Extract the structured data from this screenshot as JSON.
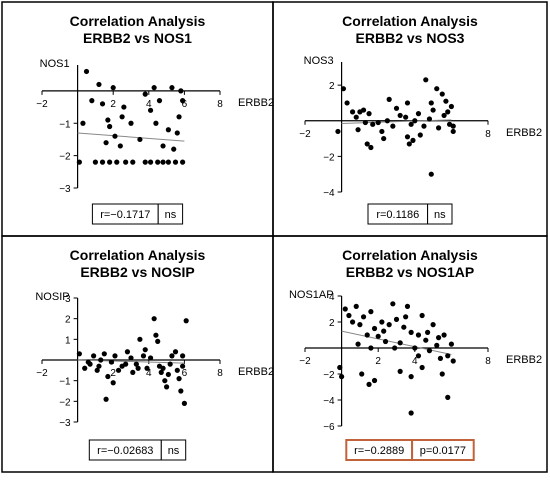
{
  "chart_data": [
    {
      "type": "scatter",
      "title": "Correlation Analysis",
      "subtitle": "ERBB2 vs NOS1",
      "xlabel": "ERBB2",
      "ylabel": "NOS1",
      "xlim": [
        -2,
        8
      ],
      "ylim": [
        -3,
        0.8
      ],
      "xticks": [
        -2,
        2,
        4,
        6,
        8
      ],
      "yticks": [
        -1,
        -2,
        -3
      ],
      "trendline": [
        [
          0,
          -1.3
        ],
        [
          6,
          -1.55
        ]
      ],
      "points": [
        [
          0.5,
          0.6
        ],
        [
          1.2,
          0.2
        ],
        [
          2.0,
          0.1
        ],
        [
          3.8,
          -0.1
        ],
        [
          4.3,
          0.1
        ],
        [
          5.3,
          0.1
        ],
        [
          5.8,
          0.0
        ],
        [
          0.8,
          -0.3
        ],
        [
          1.4,
          -0.4
        ],
        [
          2.6,
          -0.5
        ],
        [
          4.6,
          -0.3
        ],
        [
          5.9,
          -0.3
        ],
        [
          4.1,
          -0.6
        ],
        [
          5.7,
          -0.8
        ],
        [
          1.7,
          -0.9
        ],
        [
          2.5,
          -0.8
        ],
        [
          0.3,
          -1.0
        ],
        [
          1.8,
          -1.1
        ],
        [
          3.0,
          -1.0
        ],
        [
          4.4,
          -1.0
        ],
        [
          5.1,
          -1.2
        ],
        [
          2.1,
          -1.4
        ],
        [
          3.5,
          -1.5
        ],
        [
          5.6,
          -1.3
        ],
        [
          1.6,
          -1.6
        ],
        [
          2.4,
          -1.7
        ],
        [
          4.8,
          -1.7
        ],
        [
          5.4,
          -1.8
        ],
        [
          0.1,
          -2.2
        ],
        [
          1.0,
          -2.2
        ],
        [
          1.4,
          -2.2
        ],
        [
          1.8,
          -2.2
        ],
        [
          2.2,
          -2.2
        ],
        [
          2.7,
          -2.2
        ],
        [
          3.1,
          -2.2
        ],
        [
          3.8,
          -2.2
        ],
        [
          4.1,
          -2.2
        ],
        [
          4.5,
          -2.2
        ],
        [
          4.8,
          -2.2
        ],
        [
          5.1,
          -2.2
        ],
        [
          5.5,
          -2.2
        ],
        [
          5.9,
          -2.2
        ]
      ],
      "r": "r=−0.1717",
      "p": "ns",
      "highlight": false
    },
    {
      "type": "scatter",
      "title": "Correlation Analysis",
      "subtitle": "ERBB2 vs NOS3",
      "xlabel": "ERBB2",
      "ylabel": "NOS3",
      "xlim": [
        -2,
        8
      ],
      "ylim": [
        -4,
        3.3
      ],
      "xticks": [
        -2,
        8
      ],
      "yticks": [
        2,
        -2,
        -4
      ],
      "trendline": [
        [
          0,
          -0.15
        ],
        [
          6,
          0.05
        ]
      ],
      "points": [
        [
          0.1,
          1.8
        ],
        [
          0.3,
          1.0
        ],
        [
          0.6,
          0.5
        ],
        [
          -0.2,
          -0.6
        ],
        [
          0.8,
          0.2
        ],
        [
          1.0,
          0.5
        ],
        [
          1.3,
          -0.1
        ],
        [
          1.5,
          0.4
        ],
        [
          1.7,
          -0.2
        ],
        [
          2.0,
          -0.1
        ],
        [
          2.2,
          -0.6
        ],
        [
          2.5,
          0.0
        ],
        [
          2.8,
          -0.3
        ],
        [
          3.0,
          0.7
        ],
        [
          3.2,
          0.3
        ],
        [
          3.5,
          0.2
        ],
        [
          3.8,
          -0.2
        ],
        [
          4.0,
          0.0
        ],
        [
          4.2,
          0.4
        ],
        [
          4.5,
          -0.3
        ],
        [
          4.8,
          0.1
        ],
        [
          5.0,
          0.6
        ],
        [
          5.3,
          -0.4
        ],
        [
          5.6,
          0.3
        ],
        [
          5.9,
          -0.2
        ],
        [
          6.0,
          0.8
        ],
        [
          6.1,
          -0.6
        ],
        [
          5.5,
          1.5
        ],
        [
          4.6,
          2.3
        ],
        [
          4.9,
          1.0
        ],
        [
          5.2,
          1.8
        ],
        [
          4.9,
          -3.0
        ],
        [
          2.6,
          1.2
        ],
        [
          3.6,
          1.0
        ],
        [
          1.2,
          0.6
        ],
        [
          0.9,
          -0.5
        ],
        [
          2.3,
          -1.0
        ],
        [
          1.4,
          -1.3
        ],
        [
          1.6,
          -1.5
        ],
        [
          3.6,
          -0.9
        ],
        [
          3.7,
          -1.3
        ],
        [
          4.3,
          -0.8
        ],
        [
          3.9,
          -1.1
        ],
        [
          5.8,
          0.5
        ],
        [
          6.1,
          -0.3
        ],
        [
          5.7,
          1.1
        ]
      ],
      "r": "r=0.1186",
      "p": "ns",
      "highlight": false
    },
    {
      "type": "scatter",
      "title": "Correlation Analysis",
      "subtitle": "ERBB2 vs NOSIP",
      "xlabel": "ERBB2",
      "ylabel": "NOSIP",
      "xlim": [
        -2,
        8
      ],
      "ylim": [
        -3,
        3
      ],
      "xticks": [
        -2,
        2,
        4,
        6,
        8
      ],
      "yticks": [
        3,
        2,
        1,
        -1,
        -2,
        -3
      ],
      "trendline": [
        [
          0,
          0.0
        ],
        [
          6,
          -0.15
        ]
      ],
      "points": [
        [
          0.1,
          0.3
        ],
        [
          0.4,
          -0.4
        ],
        [
          0.7,
          -0.2
        ],
        [
          0.9,
          0.2
        ],
        [
          1.1,
          -0.5
        ],
        [
          1.3,
          0.0
        ],
        [
          1.5,
          0.3
        ],
        [
          1.7,
          -0.8
        ],
        [
          1.9,
          -0.1
        ],
        [
          2.1,
          0.2
        ],
        [
          2.3,
          -0.5
        ],
        [
          2.5,
          -0.3
        ],
        [
          2.8,
          0.4
        ],
        [
          3.0,
          0.1
        ],
        [
          3.3,
          -0.2
        ],
        [
          3.5,
          1.0
        ],
        [
          3.7,
          0.2
        ],
        [
          3.9,
          -0.4
        ],
        [
          4.1,
          0.1
        ],
        [
          4.3,
          2.0
        ],
        [
          4.5,
          0.9
        ],
        [
          4.7,
          -0.6
        ],
        [
          4.9,
          -1.0
        ],
        [
          5.1,
          -0.7
        ],
        [
          5.3,
          0.2
        ],
        [
          5.5,
          0.4
        ],
        [
          5.7,
          -0.9
        ],
        [
          5.9,
          -0.3
        ],
        [
          6.1,
          1.9
        ],
        [
          6.0,
          -2.1
        ],
        [
          5.8,
          -1.5
        ],
        [
          1.6,
          -1.9
        ],
        [
          2.0,
          -1.1
        ],
        [
          3.1,
          -0.6
        ],
        [
          3.8,
          0.5
        ],
        [
          4.6,
          -0.3
        ],
        [
          5.0,
          -1.3
        ],
        [
          5.6,
          -0.5
        ],
        [
          4.4,
          1.2
        ],
        [
          1.2,
          -0.3
        ],
        [
          0.6,
          -0.1
        ],
        [
          2.7,
          -0.2
        ],
        [
          3.4,
          -0.4
        ],
        [
          5.2,
          -0.2
        ],
        [
          5.9,
          0.2
        ],
        [
          4.8,
          -0.4
        ]
      ],
      "r": "r=−0.02683",
      "p": "ns",
      "highlight": false
    },
    {
      "type": "scatter",
      "title": "Correlation Analysis",
      "subtitle": "ERBB2 vs NOS1AP",
      "xlabel": "ERBB2",
      "ylabel": "NOS1AP",
      "xlim": [
        -2,
        8
      ],
      "ylim": [
        -6,
        4
      ],
      "xticks": [
        -2,
        2,
        4,
        8
      ],
      "yticks": [
        4,
        2,
        -2,
        -4,
        -6
      ],
      "trendline": [
        [
          0,
          1.3
        ],
        [
          6,
          -0.5
        ]
      ],
      "points": [
        [
          0.2,
          3.0
        ],
        [
          0.4,
          2.5
        ],
        [
          0.6,
          2.0
        ],
        [
          0.8,
          3.2
        ],
        [
          1.0,
          1.8
        ],
        [
          1.2,
          2.4
        ],
        [
          1.4,
          1.0
        ],
        [
          1.6,
          2.8
        ],
        [
          1.8,
          1.5
        ],
        [
          2.0,
          0.9
        ],
        [
          2.2,
          2.0
        ],
        [
          2.4,
          0.5
        ],
        [
          2.6,
          1.8
        ],
        [
          2.8,
          3.4
        ],
        [
          3.0,
          2.2
        ],
        [
          3.2,
          0.4
        ],
        [
          3.4,
          1.6
        ],
        [
          3.6,
          3.2
        ],
        [
          3.8,
          1.2
        ],
        [
          4.0,
          0.0
        ],
        [
          4.2,
          1.0
        ],
        [
          4.4,
          2.5
        ],
        [
          4.6,
          0.6
        ],
        [
          4.8,
          -0.2
        ],
        [
          5.0,
          1.8
        ],
        [
          5.2,
          0.2
        ],
        [
          5.4,
          -0.8
        ],
        [
          5.6,
          1.0
        ],
        [
          5.8,
          -0.6
        ],
        [
          6.0,
          0.3
        ],
        [
          6.1,
          -1.0
        ],
        [
          -0.1,
          -1.5
        ],
        [
          0.0,
          -2.2
        ],
        [
          1.1,
          -2.0
        ],
        [
          1.8,
          -2.5
        ],
        [
          1.5,
          -2.8
        ],
        [
          3.2,
          -1.8
        ],
        [
          3.8,
          -2.2
        ],
        [
          3.8,
          -5.0
        ],
        [
          4.4,
          -1.5
        ],
        [
          5.5,
          -2.0
        ],
        [
          5.8,
          -3.8
        ],
        [
          2.9,
          0.0
        ],
        [
          1.6,
          0.0
        ],
        [
          4.7,
          1.2
        ],
        [
          5.3,
          0.8
        ],
        [
          0.9,
          0.3
        ],
        [
          2.3,
          1.3
        ],
        [
          3.5,
          2.4
        ],
        [
          4.2,
          -0.6
        ]
      ],
      "r": "r=−0.2889",
      "p": "p=0.0177",
      "highlight": true
    }
  ],
  "colors": {
    "border": "#000000",
    "axis": "#000000",
    "point": "#000000",
    "trendline": "#888888",
    "highlight_box": "#c0623a"
  }
}
